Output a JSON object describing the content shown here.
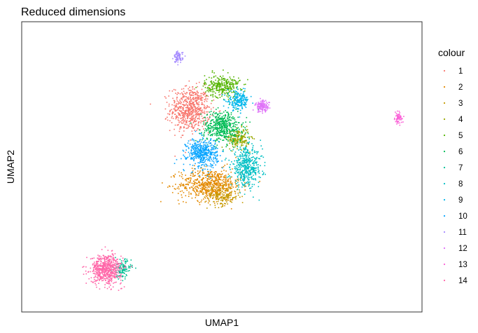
{
  "chart_data": {
    "type": "scatter",
    "title": "Reduced dimensions",
    "xlabel": "UMAP1",
    "ylabel": "UMAP2",
    "grid": false,
    "axis_ticks": false,
    "legend": {
      "title": "colour",
      "placement": "right",
      "entries": [
        "1",
        "2",
        "3",
        "4",
        "5",
        "6",
        "7",
        "8",
        "9",
        "10",
        "11",
        "12",
        "13",
        "14"
      ]
    },
    "colors": {
      "1": "#F8766D",
      "2": "#E38900",
      "3": "#C49A00",
      "4": "#99A800",
      "5": "#53B400",
      "6": "#00BC56",
      "7": "#00C094",
      "8": "#00BFC4",
      "9": "#00B6EB",
      "10": "#06A4FF",
      "11": "#A58AFF",
      "12": "#DF70F8",
      "13": "#FB61D7",
      "14": "#FF66A8"
    },
    "xlim": [
      0,
      100
    ],
    "ylim": [
      0,
      100
    ],
    "clusters": [
      {
        "label": "1",
        "cx": 42,
        "cy": 70,
        "rx": 4.5,
        "ry": 7,
        "n": 650
      },
      {
        "label": "2",
        "cx": 47,
        "cy": 44,
        "rx": 7,
        "ry": 5,
        "n": 650
      },
      {
        "label": "3",
        "cx": 50,
        "cy": 40,
        "rx": 4,
        "ry": 3,
        "n": 150
      },
      {
        "label": "4",
        "cx": 54,
        "cy": 60,
        "rx": 2.5,
        "ry": 3,
        "n": 200
      },
      {
        "label": "5",
        "cx": 50,
        "cy": 78,
        "rx": 4,
        "ry": 3.5,
        "n": 300
      },
      {
        "label": "6",
        "cx": 50,
        "cy": 64,
        "rx": 4.5,
        "ry": 5,
        "n": 500
      },
      {
        "label": "7",
        "cx": 25,
        "cy": 15,
        "rx": 2,
        "ry": 3,
        "n": 120
      },
      {
        "label": "8",
        "cx": 56,
        "cy": 50,
        "rx": 3.5,
        "ry": 6,
        "n": 450
      },
      {
        "label": "9",
        "cx": 54,
        "cy": 73,
        "rx": 2.5,
        "ry": 3,
        "n": 200
      },
      {
        "label": "10",
        "cx": 45,
        "cy": 55,
        "rx": 3.5,
        "ry": 4.5,
        "n": 450
      },
      {
        "label": "11",
        "cx": 39,
        "cy": 88,
        "rx": 1,
        "ry": 1.8,
        "n": 80
      },
      {
        "label": "12",
        "cx": 60,
        "cy": 71,
        "rx": 1.6,
        "ry": 1.8,
        "n": 120
      },
      {
        "label": "13",
        "cx": 94,
        "cy": 67,
        "rx": 0.8,
        "ry": 1.8,
        "n": 60
      },
      {
        "label": "14",
        "cx": 21,
        "cy": 15,
        "rx": 3.5,
        "ry": 4.5,
        "n": 600
      }
    ]
  }
}
